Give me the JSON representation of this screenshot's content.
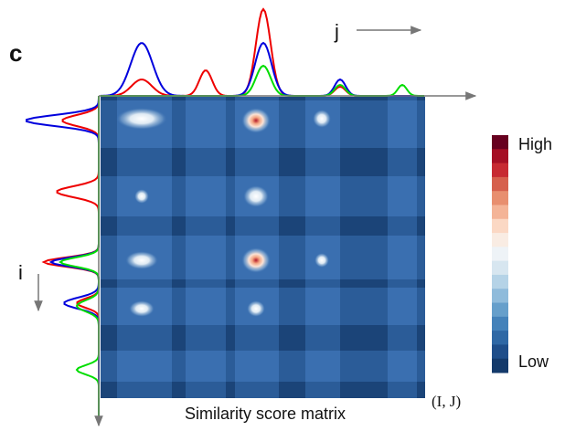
{
  "panel_label": "c",
  "axis_j": "j",
  "axis_i": "i",
  "colorbar": {
    "high": "High",
    "low": "Low"
  },
  "corner_label": "(I, J)",
  "caption": "Similarity score matrix"
}
